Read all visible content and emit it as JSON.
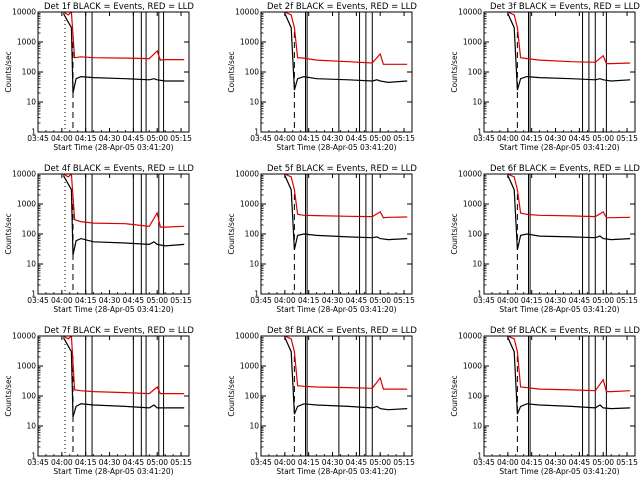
{
  "figure": {
    "background": "#ffffff",
    "axis_color": "#000000",
    "events_color": "#000000",
    "lld_color": "#dd0000"
  },
  "chart_data": [
    {
      "type": "line",
      "title": "Det 1f BLACK = Events, RED = LLD",
      "xlabel": "Start Time (28-Apr-05 03:41:20)",
      "ylabel": "Counts/sec",
      "yscale": "log",
      "ylim": [
        1,
        10000
      ],
      "xlim": [
        "03:45",
        "05:20"
      ],
      "x_ticks": [
        "03:45",
        "04:00",
        "04:15",
        "04:30",
        "04:45",
        "05:00",
        "05:15"
      ],
      "y_ticks": [
        "1",
        "10",
        "100",
        "1000",
        "10000"
      ],
      "grid": false,
      "markers_dashed": [
        "04:07"
      ],
      "markers_dotted": [
        "04:02"
      ],
      "markers_solid": [
        "04:15",
        "04:19",
        "04:45",
        "04:50",
        "04:53",
        "05:01",
        "05:04"
      ],
      "series": [
        {
          "name": "Events",
          "color": "#000000",
          "x": [
            "04:01",
            "04:06",
            "04:07",
            "04:09",
            "04:12",
            "04:20",
            "04:40",
            "04:55",
            "04:58",
            "05:00",
            "05:05",
            "05:17"
          ],
          "y": [
            9000,
            3000,
            20,
            60,
            70,
            65,
            60,
            55,
            60,
            55,
            50,
            50
          ]
        },
        {
          "name": "LLD",
          "color": "#dd0000",
          "x": [
            "04:01",
            "04:04",
            "04:06",
            "04:08",
            "04:12",
            "04:20",
            "04:40",
            "04:55",
            "05:00",
            "05:02",
            "05:05",
            "05:17"
          ],
          "y": [
            10000,
            8000,
            10000,
            300,
            320,
            300,
            290,
            280,
            500,
            250,
            260,
            260
          ]
        }
      ]
    },
    {
      "type": "line",
      "title": "Det 2f BLACK = Events, RED = LLD",
      "xlabel": "Start Time (28-Apr-05 03:41:20)",
      "ylabel": "Counts/sec",
      "yscale": "log",
      "ylim": [
        1,
        10000
      ],
      "xlim": [
        "03:45",
        "05:20"
      ],
      "x_ticks": [
        "03:45",
        "04:00",
        "04:15",
        "04:30",
        "04:45",
        "05:00",
        "05:15"
      ],
      "y_ticks": [
        "1",
        "10",
        "100",
        "1000",
        "10000"
      ],
      "grid": false,
      "markers_dashed": [
        "04:06"
      ],
      "markers_dotted": [],
      "markers_solid": [
        "04:13",
        "04:14",
        "04:34",
        "04:47",
        "04:51",
        "04:55"
      ],
      "series": [
        {
          "name": "Events",
          "color": "#000000",
          "x": [
            "04:00",
            "04:04",
            "04:06",
            "04:08",
            "04:12",
            "04:20",
            "04:40",
            "04:55",
            "04:58",
            "05:00",
            "05:05",
            "05:17"
          ],
          "y": [
            9000,
            3000,
            25,
            60,
            70,
            60,
            55,
            50,
            55,
            50,
            45,
            50
          ]
        },
        {
          "name": "LLD",
          "color": "#dd0000",
          "x": [
            "04:00",
            "04:04",
            "04:06",
            "04:08",
            "04:12",
            "04:20",
            "04:40",
            "04:55",
            "05:00",
            "05:02",
            "05:05",
            "05:17"
          ],
          "y": [
            10000,
            8000,
            3000,
            300,
            290,
            250,
            220,
            200,
            400,
            180,
            180,
            180
          ]
        }
      ]
    },
    {
      "type": "line",
      "title": "Det 3f BLACK = Events, RED = LLD",
      "xlabel": "Start Time (28-Apr-05 03:41:20)",
      "ylabel": "Counts/sec",
      "yscale": "log",
      "ylim": [
        1,
        10000
      ],
      "xlim": [
        "03:45",
        "05:20"
      ],
      "x_ticks": [
        "03:45",
        "04:00",
        "04:15",
        "04:30",
        "04:45",
        "05:00",
        "05:15"
      ],
      "y_ticks": [
        "1",
        "10",
        "100",
        "1000",
        "10000"
      ],
      "grid": false,
      "markers_dashed": [
        "04:06"
      ],
      "markers_dotted": [],
      "markers_solid": [
        "04:13",
        "04:14",
        "04:47",
        "04:51",
        "04:55",
        "05:02"
      ],
      "series": [
        {
          "name": "Events",
          "color": "#000000",
          "x": [
            "04:00",
            "04:04",
            "04:06",
            "04:08",
            "04:12",
            "04:20",
            "04:40",
            "04:55",
            "04:58",
            "05:00",
            "05:05",
            "05:17"
          ],
          "y": [
            9000,
            3000,
            25,
            60,
            70,
            65,
            60,
            55,
            60,
            55,
            50,
            55
          ]
        },
        {
          "name": "LLD",
          "color": "#dd0000",
          "x": [
            "04:00",
            "04:04",
            "04:06",
            "04:08",
            "04:12",
            "04:20",
            "04:40",
            "04:55",
            "05:00",
            "05:02",
            "05:05",
            "05:17"
          ],
          "y": [
            10000,
            8000,
            3000,
            300,
            280,
            250,
            220,
            210,
            350,
            190,
            190,
            200
          ]
        }
      ]
    },
    {
      "type": "line",
      "title": "Det 4f BLACK = Events, RED = LLD",
      "xlabel": "Start Time (28-Apr-05 03:41:20)",
      "ylabel": "Counts/sec",
      "yscale": "log",
      "ylim": [
        1,
        10000
      ],
      "xlim": [
        "03:45",
        "05:20"
      ],
      "x_ticks": [
        "03:45",
        "04:00",
        "04:15",
        "04:30",
        "04:45",
        "05:00",
        "05:15"
      ],
      "y_ticks": [
        "1",
        "10",
        "100",
        "1000",
        "10000"
      ],
      "grid": false,
      "markers_dashed": [
        "04:07"
      ],
      "markers_dotted": [
        "04:02"
      ],
      "markers_solid": [
        "04:15",
        "04:19",
        "04:45",
        "04:50",
        "04:53",
        "05:01",
        "05:04"
      ],
      "series": [
        {
          "name": "Events",
          "color": "#000000",
          "x": [
            "04:01",
            "04:06",
            "04:07",
            "04:09",
            "04:12",
            "04:20",
            "04:40",
            "04:55",
            "04:58",
            "05:00",
            "05:05",
            "05:17"
          ],
          "y": [
            9000,
            3000,
            20,
            60,
            70,
            55,
            50,
            45,
            55,
            45,
            40,
            45
          ]
        },
        {
          "name": "LLD",
          "color": "#dd0000",
          "x": [
            "04:01",
            "04:04",
            "04:06",
            "04:08",
            "04:12",
            "04:20",
            "04:40",
            "04:55",
            "05:00",
            "05:02",
            "05:05",
            "05:17"
          ],
          "y": [
            10000,
            8000,
            10000,
            300,
            260,
            230,
            220,
            180,
            500,
            170,
            170,
            180
          ]
        }
      ]
    },
    {
      "type": "line",
      "title": "Det 5f BLACK = Events, RED = LLD",
      "xlabel": "Start Time (28-Apr-05 03:41:20)",
      "ylabel": "Counts/sec",
      "yscale": "log",
      "ylim": [
        1,
        10000
      ],
      "xlim": [
        "03:45",
        "05:20"
      ],
      "x_ticks": [
        "03:45",
        "04:00",
        "04:15",
        "04:30",
        "04:45",
        "05:00",
        "05:15"
      ],
      "y_ticks": [
        "1",
        "10",
        "100",
        "1000",
        "10000"
      ],
      "grid": false,
      "markers_dashed": [
        "04:06"
      ],
      "markers_dotted": [],
      "markers_solid": [
        "04:13",
        "04:14",
        "04:34",
        "04:47",
        "04:51",
        "04:55"
      ],
      "series": [
        {
          "name": "Events",
          "color": "#000000",
          "x": [
            "04:00",
            "04:04",
            "04:06",
            "04:08",
            "04:12",
            "04:20",
            "04:40",
            "04:55",
            "04:58",
            "05:00",
            "05:05",
            "05:17"
          ],
          "y": [
            9000,
            3000,
            30,
            90,
            100,
            90,
            80,
            75,
            80,
            70,
            65,
            70
          ]
        },
        {
          "name": "LLD",
          "color": "#dd0000",
          "x": [
            "04:00",
            "04:04",
            "04:06",
            "04:08",
            "04:12",
            "04:20",
            "04:40",
            "04:55",
            "05:00",
            "05:02",
            "05:05",
            "05:17"
          ],
          "y": [
            10000,
            8000,
            3000,
            450,
            420,
            410,
            390,
            380,
            550,
            350,
            360,
            370
          ]
        }
      ]
    },
    {
      "type": "line",
      "title": "Det 6f BLACK = Events, RED = LLD",
      "xlabel": "Start Time (28-Apr-05 03:41:20)",
      "ylabel": "Counts/sec",
      "yscale": "log",
      "ylim": [
        1,
        10000
      ],
      "xlim": [
        "03:45",
        "05:20"
      ],
      "x_ticks": [
        "03:45",
        "04:00",
        "04:15",
        "04:30",
        "04:45",
        "05:00",
        "05:15"
      ],
      "y_ticks": [
        "1",
        "10",
        "100",
        "1000",
        "10000"
      ],
      "grid": false,
      "markers_dashed": [
        "04:06"
      ],
      "markers_dotted": [],
      "markers_solid": [
        "04:13",
        "04:14",
        "04:47",
        "04:51",
        "04:55",
        "05:02"
      ],
      "series": [
        {
          "name": "Events",
          "color": "#000000",
          "x": [
            "04:00",
            "04:04",
            "04:06",
            "04:08",
            "04:12",
            "04:20",
            "04:40",
            "04:55",
            "04:58",
            "05:00",
            "05:05",
            "05:17"
          ],
          "y": [
            9000,
            3000,
            30,
            90,
            100,
            85,
            80,
            75,
            85,
            70,
            65,
            70
          ]
        },
        {
          "name": "LLD",
          "color": "#dd0000",
          "x": [
            "04:00",
            "04:04",
            "04:06",
            "04:08",
            "04:12",
            "04:20",
            "04:40",
            "04:55",
            "05:00",
            "05:02",
            "05:05",
            "05:17"
          ],
          "y": [
            10000,
            8000,
            3000,
            500,
            450,
            420,
            400,
            380,
            550,
            350,
            350,
            360
          ]
        }
      ]
    },
    {
      "type": "line",
      "title": "Det 7f BLACK = Events, RED = LLD",
      "xlabel": "Start Time (28-Apr-05 03:41:20)",
      "ylabel": "Counts/sec",
      "yscale": "log",
      "ylim": [
        1,
        10000
      ],
      "xlim": [
        "03:45",
        "05:20"
      ],
      "x_ticks": [
        "03:45",
        "04:00",
        "04:15",
        "04:30",
        "04:45",
        "05:00",
        "05:15"
      ],
      "y_ticks": [
        "1",
        "10",
        "100",
        "1000",
        "10000"
      ],
      "grid": false,
      "markers_dashed": [
        "04:07"
      ],
      "markers_dotted": [
        "04:02"
      ],
      "markers_solid": [
        "04:15",
        "04:19",
        "04:45",
        "04:50",
        "04:53",
        "05:01",
        "05:04"
      ],
      "series": [
        {
          "name": "Events",
          "color": "#000000",
          "x": [
            "04:01",
            "04:06",
            "04:07",
            "04:09",
            "04:12",
            "04:20",
            "04:40",
            "04:55",
            "04:58",
            "05:00",
            "05:05",
            "05:17"
          ],
          "y": [
            9000,
            3000,
            20,
            45,
            55,
            50,
            45,
            40,
            50,
            40,
            40,
            40
          ]
        },
        {
          "name": "LLD",
          "color": "#dd0000",
          "x": [
            "04:01",
            "04:04",
            "04:06",
            "04:08",
            "04:12",
            "04:20",
            "04:40",
            "04:55",
            "05:00",
            "05:02",
            "05:05",
            "05:17"
          ],
          "y": [
            10000,
            8000,
            10000,
            160,
            150,
            140,
            130,
            120,
            200,
            120,
            120,
            120
          ]
        }
      ]
    },
    {
      "type": "line",
      "title": "Det 8f BLACK = Events, RED = LLD",
      "xlabel": "Start Time (28-Apr-05 03:41:20)",
      "ylabel": "Counts/sec",
      "yscale": "log",
      "ylim": [
        1,
        10000
      ],
      "xlim": [
        "03:45",
        "05:20"
      ],
      "x_ticks": [
        "03:45",
        "04:00",
        "04:15",
        "04:30",
        "04:45",
        "05:00",
        "05:15"
      ],
      "y_ticks": [
        "1",
        "10",
        "100",
        "1000",
        "10000"
      ],
      "grid": false,
      "markers_dashed": [
        "04:06"
      ],
      "markers_dotted": [],
      "markers_solid": [
        "04:13",
        "04:14",
        "04:34",
        "04:47",
        "04:51",
        "04:55"
      ],
      "series": [
        {
          "name": "Events",
          "color": "#000000",
          "x": [
            "04:00",
            "04:04",
            "04:06",
            "04:08",
            "04:12",
            "04:20",
            "04:40",
            "04:55",
            "04:58",
            "05:00",
            "05:05",
            "05:17"
          ],
          "y": [
            9000,
            3000,
            25,
            45,
            55,
            50,
            45,
            40,
            45,
            38,
            35,
            38
          ]
        },
        {
          "name": "LLD",
          "color": "#dd0000",
          "x": [
            "04:00",
            "04:04",
            "04:06",
            "04:08",
            "04:12",
            "04:20",
            "04:40",
            "04:55",
            "05:00",
            "05:02",
            "05:05",
            "05:17"
          ],
          "y": [
            10000,
            8000,
            3000,
            220,
            210,
            200,
            190,
            180,
            400,
            170,
            170,
            170
          ]
        }
      ]
    },
    {
      "type": "line",
      "title": "Det 9f BLACK = Events, RED = LLD",
      "xlabel": "Start Time (28-Apr-05 03:41:20)",
      "ylabel": "Counts/sec",
      "yscale": "log",
      "ylim": [
        1,
        10000
      ],
      "xlim": [
        "03:45",
        "05:20"
      ],
      "x_ticks": [
        "03:45",
        "04:00",
        "04:15",
        "04:30",
        "04:45",
        "05:00",
        "05:15"
      ],
      "y_ticks": [
        "1",
        "10",
        "100",
        "1000",
        "10000"
      ],
      "grid": false,
      "markers_dashed": [
        "04:06"
      ],
      "markers_dotted": [],
      "markers_solid": [
        "04:13",
        "04:14",
        "04:47",
        "04:51",
        "04:55",
        "05:02"
      ],
      "series": [
        {
          "name": "Events",
          "color": "#000000",
          "x": [
            "04:00",
            "04:04",
            "04:06",
            "04:08",
            "04:12",
            "04:20",
            "04:40",
            "04:55",
            "04:58",
            "05:00",
            "05:05",
            "05:17"
          ],
          "y": [
            9000,
            3000,
            25,
            45,
            55,
            50,
            45,
            40,
            50,
            40,
            38,
            40
          ]
        },
        {
          "name": "LLD",
          "color": "#dd0000",
          "x": [
            "04:00",
            "04:04",
            "04:06",
            "04:08",
            "04:12",
            "04:20",
            "04:40",
            "04:55",
            "05:00",
            "05:02",
            "05:05",
            "05:17"
          ],
          "y": [
            10000,
            8000,
            3000,
            200,
            190,
            170,
            160,
            150,
            350,
            140,
            140,
            150
          ]
        }
      ]
    }
  ]
}
